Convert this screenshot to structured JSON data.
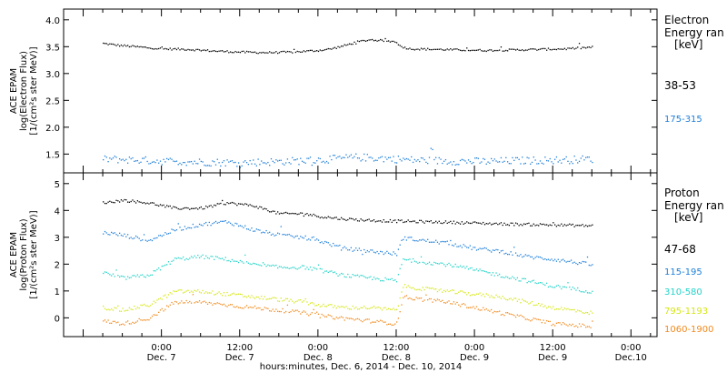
{
  "figure": {
    "xlabel": "hours:minutes, Dec. 6, 2014 - Dec. 10, 2014"
  },
  "chart_data": [
    {
      "type": "scatter",
      "panel": "electron",
      "ylabel_lines": [
        "ACE EPAM",
        "log(Electron Flux)",
        "[1/(cm²s ster MeV)]"
      ],
      "ylim": [
        1.15,
        4.2
      ],
      "yticks": [
        "1.5",
        "2.0",
        "2.5",
        "3.0",
        "3.5",
        "4.0"
      ],
      "x_tick_labels": [
        {
          "time": "0:00",
          "day": "Dec. 7",
          "h": 24
        },
        {
          "time": "12:00",
          "day": "Dec. 7",
          "h": 36
        },
        {
          "time": "0:00",
          "day": "Dec. 8",
          "h": 48
        },
        {
          "time": "12:00",
          "day": "Dec. 8",
          "h": 60
        },
        {
          "time": "0:00",
          "day": "Dec. 9",
          "h": 72
        },
        {
          "time": "12:00",
          "day": "Dec. 9",
          "h": 84
        },
        {
          "time": "0:00",
          "day": "Dec.10",
          "h": 96
        }
      ],
      "legend": {
        "title_lines": [
          "Electron",
          "Energy ran",
          "[keV]"
        ]
      },
      "series": [
        {
          "name": "38-53",
          "color": "#000000",
          "noise": 0.018,
          "points": [
            [
              15,
              3.57
            ],
            [
              17,
              3.54
            ],
            [
              20,
              3.51
            ],
            [
              24,
              3.47
            ],
            [
              28,
              3.46
            ],
            [
              32,
              3.43
            ],
            [
              36,
              3.41
            ],
            [
              40,
              3.4
            ],
            [
              44,
              3.41
            ],
            [
              48,
              3.44
            ],
            [
              50,
              3.47
            ],
            [
              52,
              3.53
            ],
            [
              54,
              3.6
            ],
            [
              56,
              3.64
            ],
            [
              58,
              3.62
            ],
            [
              60,
              3.6
            ],
            [
              60.5,
              3.52
            ],
            [
              62,
              3.47
            ],
            [
              66,
              3.46
            ],
            [
              70,
              3.45
            ],
            [
              74,
              3.44
            ],
            [
              78,
              3.45
            ],
            [
              82,
              3.46
            ],
            [
              86,
              3.47
            ],
            [
              90,
              3.5
            ]
          ]
        },
        {
          "name": "175-315",
          "color": "#1e7fd8",
          "noise": 0.07,
          "points": [
            [
              15,
              1.42
            ],
            [
              20,
              1.4
            ],
            [
              24,
              1.38
            ],
            [
              30,
              1.36
            ],
            [
              36,
              1.35
            ],
            [
              42,
              1.37
            ],
            [
              48,
              1.4
            ],
            [
              54,
              1.45
            ],
            [
              58,
              1.43
            ],
            [
              62,
              1.4
            ],
            [
              68,
              1.38
            ],
            [
              74,
              1.37
            ],
            [
              80,
              1.39
            ],
            [
              86,
              1.4
            ],
            [
              90,
              1.42
            ]
          ]
        }
      ]
    },
    {
      "type": "scatter",
      "panel": "proton",
      "ylabel_lines": [
        "ACE EPAM",
        "log(Proton Flux)",
        "[1/(cm²s ster MeV)]"
      ],
      "ylim": [
        -0.7,
        5.4
      ],
      "yticks": [
        "0",
        "1",
        "2",
        "3",
        "4",
        "5"
      ],
      "legend": {
        "title_lines": [
          "Proton",
          "Energy ran",
          "[keV]"
        ]
      },
      "series": [
        {
          "name": "47-68",
          "color": "#000000",
          "noise": 0.05,
          "points": [
            [
              15,
              4.3
            ],
            [
              18,
              4.4
            ],
            [
              22,
              4.3
            ],
            [
              26,
              4.1
            ],
            [
              30,
              4.1
            ],
            [
              34,
              4.3
            ],
            [
              38,
              4.2
            ],
            [
              42,
              3.9
            ],
            [
              46,
              3.9
            ],
            [
              48,
              3.8
            ],
            [
              52,
              3.7
            ],
            [
              56,
              3.65
            ],
            [
              60,
              3.62
            ],
            [
              64,
              3.6
            ],
            [
              68,
              3.58
            ],
            [
              72,
              3.55
            ],
            [
              76,
              3.52
            ],
            [
              80,
              3.5
            ],
            [
              84,
              3.48
            ],
            [
              90,
              3.45
            ]
          ]
        },
        {
          "name": "115-195",
          "color": "#1e7fd8",
          "noise": 0.07,
          "points": [
            [
              15,
              3.2
            ],
            [
              18,
              3.1
            ],
            [
              22,
              2.9
            ],
            [
              26,
              3.3
            ],
            [
              30,
              3.5
            ],
            [
              34,
              3.6
            ],
            [
              38,
              3.3
            ],
            [
              42,
              3.1
            ],
            [
              46,
              3.0
            ],
            [
              48,
              2.9
            ],
            [
              52,
              2.6
            ],
            [
              56,
              2.5
            ],
            [
              60,
              2.4
            ],
            [
              61,
              3.0
            ],
            [
              64,
              2.9
            ],
            [
              68,
              2.8
            ],
            [
              72,
              2.6
            ],
            [
              76,
              2.5
            ],
            [
              80,
              2.3
            ],
            [
              84,
              2.2
            ],
            [
              90,
              2.0
            ]
          ]
        },
        {
          "name": "310-580",
          "color": "#22d3c8",
          "noise": 0.07,
          "points": [
            [
              15,
              1.7
            ],
            [
              18,
              1.5
            ],
            [
              22,
              1.6
            ],
            [
              26,
              2.2
            ],
            [
              30,
              2.3
            ],
            [
              34,
              2.2
            ],
            [
              38,
              2.0
            ],
            [
              42,
              1.9
            ],
            [
              46,
              1.9
            ],
            [
              48,
              1.8
            ],
            [
              52,
              1.6
            ],
            [
              56,
              1.5
            ],
            [
              60,
              1.4
            ],
            [
              61,
              2.2
            ],
            [
              64,
              2.1
            ],
            [
              68,
              2.0
            ],
            [
              72,
              1.8
            ],
            [
              76,
              1.6
            ],
            [
              80,
              1.4
            ],
            [
              84,
              1.2
            ],
            [
              90,
              1.0
            ]
          ]
        },
        {
          "name": "795-1193",
          "color": "#d6e614",
          "noise": 0.07,
          "points": [
            [
              15,
              0.4
            ],
            [
              18,
              0.3
            ],
            [
              22,
              0.5
            ],
            [
              26,
              1.0
            ],
            [
              30,
              1.0
            ],
            [
              34,
              0.9
            ],
            [
              38,
              0.8
            ],
            [
              42,
              0.7
            ],
            [
              46,
              0.6
            ],
            [
              48,
              0.5
            ],
            [
              52,
              0.4
            ],
            [
              56,
              0.4
            ],
            [
              60,
              0.3
            ],
            [
              61,
              1.2
            ],
            [
              64,
              1.1
            ],
            [
              68,
              1.0
            ],
            [
              72,
              0.9
            ],
            [
              76,
              0.8
            ],
            [
              80,
              0.6
            ],
            [
              84,
              0.4
            ],
            [
              90,
              0.2
            ]
          ]
        },
        {
          "name": "1060-1900",
          "color": "#f08a1c",
          "noise": 0.07,
          "points": [
            [
              15,
              -0.1
            ],
            [
              18,
              -0.2
            ],
            [
              22,
              0.0
            ],
            [
              26,
              0.6
            ],
            [
              30,
              0.6
            ],
            [
              34,
              0.5
            ],
            [
              38,
              0.4
            ],
            [
              42,
              0.3
            ],
            [
              46,
              0.2
            ],
            [
              48,
              0.1
            ],
            [
              52,
              0.0
            ],
            [
              56,
              -0.1
            ],
            [
              60,
              -0.2
            ],
            [
              61,
              0.8
            ],
            [
              64,
              0.7
            ],
            [
              68,
              0.6
            ],
            [
              72,
              0.4
            ],
            [
              76,
              0.2
            ],
            [
              80,
              0.0
            ],
            [
              84,
              -0.2
            ],
            [
              90,
              -0.3
            ]
          ]
        }
      ]
    }
  ]
}
